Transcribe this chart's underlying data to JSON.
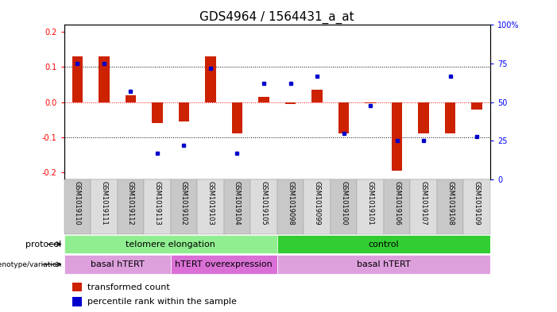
{
  "title": "GDS4964 / 1564431_a_at",
  "samples": [
    "GSM1019110",
    "GSM1019111",
    "GSM1019112",
    "GSM1019113",
    "GSM1019102",
    "GSM1019103",
    "GSM1019104",
    "GSM1019105",
    "GSM1019098",
    "GSM1019099",
    "GSM1019100",
    "GSM1019101",
    "GSM1019106",
    "GSM1019107",
    "GSM1019108",
    "GSM1019109"
  ],
  "red_values": [
    0.13,
    0.13,
    0.02,
    -0.06,
    -0.055,
    0.13,
    -0.09,
    0.015,
    -0.005,
    0.035,
    -0.09,
    -0.003,
    -0.195,
    -0.09,
    -0.09,
    -0.02
  ],
  "blue_percentile": [
    75,
    75,
    57,
    17,
    22,
    72,
    17,
    62,
    62,
    67,
    30,
    48,
    25,
    25,
    67,
    28
  ],
  "protocol_groups": [
    {
      "label": "telomere elongation",
      "start": 0,
      "end": 7,
      "color": "#90EE90"
    },
    {
      "label": "control",
      "start": 8,
      "end": 15,
      "color": "#32CD32"
    }
  ],
  "genotype_groups": [
    {
      "label": "basal hTERT",
      "start": 0,
      "end": 3,
      "color": "#DDA0DD"
    },
    {
      "label": "hTERT overexpression",
      "start": 4,
      "end": 7,
      "color": "#DA70D6"
    },
    {
      "label": "basal hTERT",
      "start": 8,
      "end": 15,
      "color": "#DDA0DD"
    }
  ],
  "ylim": [
    -0.22,
    0.22
  ],
  "yticks_left": [
    -0.2,
    -0.1,
    0.0,
    0.1,
    0.2
  ],
  "yticks_right": [
    0,
    25,
    50,
    75,
    100
  ],
  "hline_red": 0.0,
  "hlines_black": [
    0.1,
    -0.1
  ],
  "bar_color": "#CC2200",
  "dot_color": "#0000CC",
  "title_fontsize": 11,
  "tick_fontsize": 7,
  "label_fontsize": 8,
  "sample_fontsize": 6
}
